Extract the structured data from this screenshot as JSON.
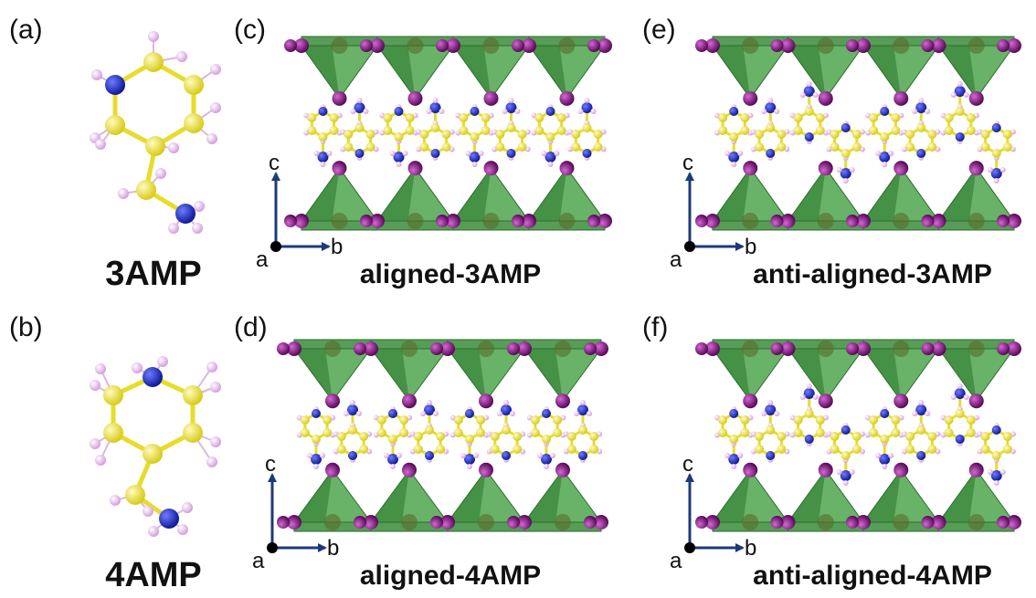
{
  "panels": [
    {
      "id": "a",
      "label": "(a)",
      "caption": "3AMP",
      "kind": "molecule",
      "variant": "3"
    },
    {
      "id": "b",
      "label": "(b)",
      "caption": "4AMP",
      "kind": "molecule",
      "variant": "4"
    },
    {
      "id": "c",
      "label": "(c)",
      "caption": "aligned-3AMP",
      "kind": "crystal",
      "variant": "aligned3"
    },
    {
      "id": "d",
      "label": "(d)",
      "caption": "aligned-4AMP",
      "kind": "crystal",
      "variant": "aligned4"
    },
    {
      "id": "e",
      "label": "(e)",
      "caption": "anti-aligned-3AMP",
      "kind": "crystal",
      "variant": "anti3"
    },
    {
      "id": "f",
      "label": "(f)",
      "caption": "anti-aligned-4AMP",
      "kind": "crystal",
      "variant": "anti4"
    }
  ],
  "axes": {
    "a": "a",
    "b": "b",
    "c": "c"
  },
  "colors": {
    "carbon": "#f2e93a",
    "nitrogen": "#1f2fd0",
    "hydrogen": "#e6b6ec",
    "iodine": "#8b1a8b",
    "octahedron": "#3f9a3f",
    "axis": "#1c3a78"
  }
}
